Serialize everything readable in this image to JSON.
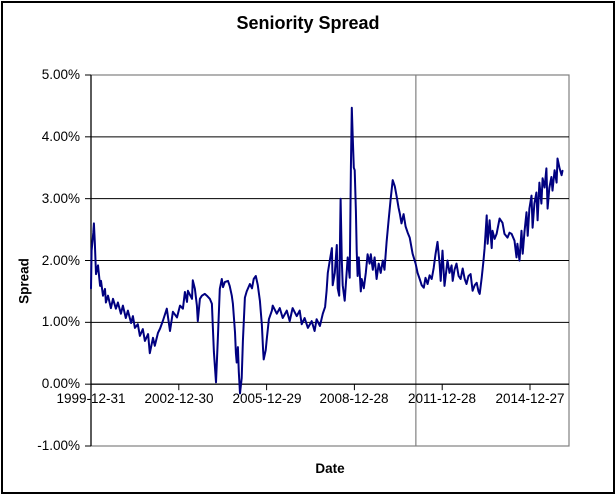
{
  "title": "Seniority Spread",
  "colors": {
    "line": "#000080",
    "gridline": "#000000",
    "plot_border": "#808080",
    "vertical_gridline": "#808080",
    "background": "#FFFFFF",
    "text": "#000000"
  },
  "chart_data": {
    "type": "line",
    "title": "Seniority Spread",
    "xlabel": "Date",
    "ylabel": "Spread",
    "legend": "none",
    "grid": "horizontal major gridlines black; single vertical gray gridline near 2011; plot border gray",
    "ylim": [
      -1,
      5
    ],
    "y_ticks": [
      5,
      4,
      3,
      2,
      1,
      0,
      -1
    ],
    "y_tick_labels": [
      "5.00%",
      "4.00%",
      "3.00%",
      "2.00%",
      "1.00%",
      "0.00%",
      "-1.00%"
    ],
    "x_tick_labels": [
      "1999-12-31",
      "2002-12-30",
      "2005-12-29",
      "2008-12-28",
      "2011-12-28",
      "2014-12-27"
    ],
    "x_axis_position_value": 0,
    "x_range_years": [
      2000,
      2016.33
    ],
    "vertical_gridline_year": 2011.1,
    "series": [
      {
        "name": "Seniority Spread",
        "color": "#000080",
        "units": "percent",
        "points": [
          [
            2000.0,
            1.55
          ],
          [
            2000.02,
            2.16
          ],
          [
            2000.08,
            2.45
          ],
          [
            2000.1,
            2.6
          ],
          [
            2000.13,
            2.3
          ],
          [
            2000.17,
            1.78
          ],
          [
            2000.24,
            1.92
          ],
          [
            2000.31,
            1.59
          ],
          [
            2000.34,
            1.67
          ],
          [
            2000.41,
            1.43
          ],
          [
            2000.48,
            1.54
          ],
          [
            2000.51,
            1.32
          ],
          [
            2000.58,
            1.43
          ],
          [
            2000.68,
            1.23
          ],
          [
            2000.75,
            1.38
          ],
          [
            2000.85,
            1.22
          ],
          [
            2000.92,
            1.32
          ],
          [
            2001.02,
            1.14
          ],
          [
            2001.09,
            1.27
          ],
          [
            2001.19,
            1.07
          ],
          [
            2001.26,
            1.19
          ],
          [
            2001.37,
            0.99
          ],
          [
            2001.43,
            1.1
          ],
          [
            2001.5,
            0.91
          ],
          [
            2001.6,
            0.97
          ],
          [
            2001.67,
            0.78
          ],
          [
            2001.77,
            0.89
          ],
          [
            2001.84,
            0.7
          ],
          [
            2001.95,
            0.81
          ],
          [
            2002.01,
            0.5
          ],
          [
            2002.12,
            0.75
          ],
          [
            2002.18,
            0.62
          ],
          [
            2002.29,
            0.83
          ],
          [
            2002.36,
            0.9
          ],
          [
            2002.46,
            1.03
          ],
          [
            2002.59,
            1.22
          ],
          [
            2002.7,
            0.86
          ],
          [
            2002.8,
            1.17
          ],
          [
            2002.94,
            1.08
          ],
          [
            2003.04,
            1.27
          ],
          [
            2003.14,
            1.22
          ],
          [
            2003.21,
            1.49
          ],
          [
            2003.28,
            1.33
          ],
          [
            2003.31,
            1.51
          ],
          [
            2003.45,
            1.38
          ],
          [
            2003.48,
            1.68
          ],
          [
            2003.55,
            1.54
          ],
          [
            2003.62,
            1.27
          ],
          [
            2003.65,
            1.02
          ],
          [
            2003.72,
            1.38
          ],
          [
            2003.79,
            1.43
          ],
          [
            2003.89,
            1.46
          ],
          [
            2003.96,
            1.43
          ],
          [
            2004.06,
            1.38
          ],
          [
            2004.13,
            1.3
          ],
          [
            2004.16,
            0.94
          ],
          [
            2004.2,
            0.52
          ],
          [
            2004.27,
            0.03
          ],
          [
            2004.33,
            0.68
          ],
          [
            2004.4,
            1.54
          ],
          [
            2004.47,
            1.7
          ],
          [
            2004.51,
            1.57
          ],
          [
            2004.57,
            1.65
          ],
          [
            2004.68,
            1.67
          ],
          [
            2004.74,
            1.59
          ],
          [
            2004.81,
            1.43
          ],
          [
            2004.85,
            1.3
          ],
          [
            2004.92,
            0.84
          ],
          [
            2004.95,
            0.5
          ],
          [
            2004.98,
            0.35
          ],
          [
            2005.02,
            0.6
          ],
          [
            2005.05,
            0.2
          ],
          [
            2005.09,
            -0.15
          ],
          [
            2005.15,
            0.1
          ],
          [
            2005.19,
            0.7
          ],
          [
            2005.26,
            1.4
          ],
          [
            2005.32,
            1.5
          ],
          [
            2005.43,
            1.62
          ],
          [
            2005.5,
            1.55
          ],
          [
            2005.56,
            1.7
          ],
          [
            2005.63,
            1.75
          ],
          [
            2005.7,
            1.6
          ],
          [
            2005.77,
            1.35
          ],
          [
            2005.84,
            0.95
          ],
          [
            2005.88,
            0.55
          ],
          [
            2005.9,
            0.4
          ],
          [
            2005.97,
            0.55
          ],
          [
            2006.01,
            0.75
          ],
          [
            2006.08,
            1.05
          ],
          [
            2006.18,
            1.19
          ],
          [
            2006.21,
            1.27
          ],
          [
            2006.35,
            1.14
          ],
          [
            2006.45,
            1.23
          ],
          [
            2006.55,
            1.07
          ],
          [
            2006.69,
            1.19
          ],
          [
            2006.79,
            1.02
          ],
          [
            2006.89,
            1.23
          ],
          [
            2007.03,
            1.1
          ],
          [
            2007.13,
            1.19
          ],
          [
            2007.2,
            0.97
          ],
          [
            2007.3,
            1.07
          ],
          [
            2007.41,
            0.91
          ],
          [
            2007.54,
            1.02
          ],
          [
            2007.64,
            0.86
          ],
          [
            2007.71,
            1.05
          ],
          [
            2007.82,
            0.94
          ],
          [
            2007.92,
            1.14
          ],
          [
            2008.0,
            1.25
          ],
          [
            2008.05,
            1.51
          ],
          [
            2008.09,
            1.8
          ],
          [
            2008.16,
            2.0
          ],
          [
            2008.23,
            2.2
          ],
          [
            2008.26,
            1.6
          ],
          [
            2008.33,
            1.8
          ],
          [
            2008.4,
            2.25
          ],
          [
            2008.43,
            1.55
          ],
          [
            2008.48,
            1.43
          ],
          [
            2008.53,
            3.0
          ],
          [
            2008.57,
            2.0
          ],
          [
            2008.6,
            1.6
          ],
          [
            2008.67,
            1.35
          ],
          [
            2008.77,
            2.05
          ],
          [
            2008.84,
            1.72
          ],
          [
            2008.88,
            3.5
          ],
          [
            2008.91,
            4.47
          ],
          [
            2008.94,
            4.06
          ],
          [
            2008.98,
            3.5
          ],
          [
            2009.01,
            3.46
          ],
          [
            2009.05,
            2.8
          ],
          [
            2009.08,
            2.16
          ],
          [
            2009.11,
            1.75
          ],
          [
            2009.15,
            2.05
          ],
          [
            2009.22,
            1.5
          ],
          [
            2009.25,
            1.7
          ],
          [
            2009.32,
            1.55
          ],
          [
            2009.39,
            1.8
          ],
          [
            2009.45,
            2.1
          ],
          [
            2009.52,
            1.95
          ],
          [
            2009.56,
            2.1
          ],
          [
            2009.63,
            1.85
          ],
          [
            2009.69,
            2.05
          ],
          [
            2009.76,
            1.7
          ],
          [
            2009.83,
            1.95
          ],
          [
            2009.9,
            1.8
          ],
          [
            2009.97,
            2.0
          ],
          [
            2010.03,
            1.85
          ],
          [
            2010.1,
            2.3
          ],
          [
            2010.17,
            2.65
          ],
          [
            2010.24,
            3.0
          ],
          [
            2010.31,
            3.3
          ],
          [
            2010.38,
            3.2
          ],
          [
            2010.44,
            3.05
          ],
          [
            2010.51,
            2.85
          ],
          [
            2010.55,
            2.76
          ],
          [
            2010.61,
            2.6
          ],
          [
            2010.68,
            2.75
          ],
          [
            2010.75,
            2.55
          ],
          [
            2010.82,
            2.45
          ],
          [
            2010.89,
            2.37
          ],
          [
            2010.99,
            2.11
          ],
          [
            2011.09,
            1.95
          ],
          [
            2011.16,
            1.8
          ],
          [
            2011.23,
            1.7
          ],
          [
            2011.3,
            1.6
          ],
          [
            2011.37,
            1.56
          ],
          [
            2011.43,
            1.72
          ],
          [
            2011.5,
            1.62
          ],
          [
            2011.57,
            1.76
          ],
          [
            2011.64,
            1.7
          ],
          [
            2011.71,
            1.88
          ],
          [
            2011.77,
            2.1
          ],
          [
            2011.84,
            2.3
          ],
          [
            2011.91,
            1.95
          ],
          [
            2011.95,
            1.67
          ],
          [
            2012.01,
            2.16
          ],
          [
            2012.08,
            1.59
          ],
          [
            2012.18,
            2.0
          ],
          [
            2012.25,
            1.8
          ],
          [
            2012.32,
            1.92
          ],
          [
            2012.36,
            1.67
          ],
          [
            2012.42,
            1.85
          ],
          [
            2012.49,
            1.95
          ],
          [
            2012.56,
            1.75
          ],
          [
            2012.63,
            1.7
          ],
          [
            2012.7,
            1.87
          ],
          [
            2012.77,
            1.7
          ],
          [
            2012.83,
            1.62
          ],
          [
            2012.9,
            1.75
          ],
          [
            2012.97,
            1.78
          ],
          [
            2013.04,
            1.51
          ],
          [
            2013.11,
            1.6
          ],
          [
            2013.18,
            1.64
          ],
          [
            2013.24,
            1.5
          ],
          [
            2013.28,
            1.46
          ],
          [
            2013.35,
            1.72
          ],
          [
            2013.41,
            2.0
          ],
          [
            2013.45,
            2.2
          ],
          [
            2013.52,
            2.73
          ],
          [
            2013.55,
            2.27
          ],
          [
            2013.62,
            2.65
          ],
          [
            2013.69,
            2.2
          ],
          [
            2013.72,
            2.48
          ],
          [
            2013.79,
            2.35
          ],
          [
            2013.86,
            2.43
          ],
          [
            2013.96,
            2.68
          ],
          [
            2014.06,
            2.61
          ],
          [
            2014.13,
            2.43
          ],
          [
            2014.23,
            2.37
          ],
          [
            2014.3,
            2.45
          ],
          [
            2014.37,
            2.43
          ],
          [
            2014.47,
            2.32
          ],
          [
            2014.54,
            2.05
          ],
          [
            2014.57,
            2.27
          ],
          [
            2014.64,
            2.0
          ],
          [
            2014.71,
            2.48
          ],
          [
            2014.75,
            2.11
          ],
          [
            2014.81,
            2.45
          ],
          [
            2014.88,
            2.78
          ],
          [
            2014.92,
            2.4
          ],
          [
            2014.98,
            2.84
          ],
          [
            2015.05,
            3.05
          ],
          [
            2015.09,
            2.53
          ],
          [
            2015.15,
            2.92
          ],
          [
            2015.22,
            3.1
          ],
          [
            2015.26,
            2.65
          ],
          [
            2015.32,
            3.26
          ],
          [
            2015.39,
            2.92
          ],
          [
            2015.43,
            3.33
          ],
          [
            2015.5,
            3.18
          ],
          [
            2015.56,
            3.49
          ],
          [
            2015.6,
            2.84
          ],
          [
            2015.66,
            3.17
          ],
          [
            2015.73,
            3.35
          ],
          [
            2015.77,
            3.13
          ],
          [
            2015.84,
            3.46
          ],
          [
            2015.91,
            3.26
          ],
          [
            2015.94,
            3.65
          ],
          [
            2016.01,
            3.49
          ],
          [
            2016.08,
            3.38
          ],
          [
            2016.11,
            3.45
          ]
        ]
      }
    ]
  }
}
